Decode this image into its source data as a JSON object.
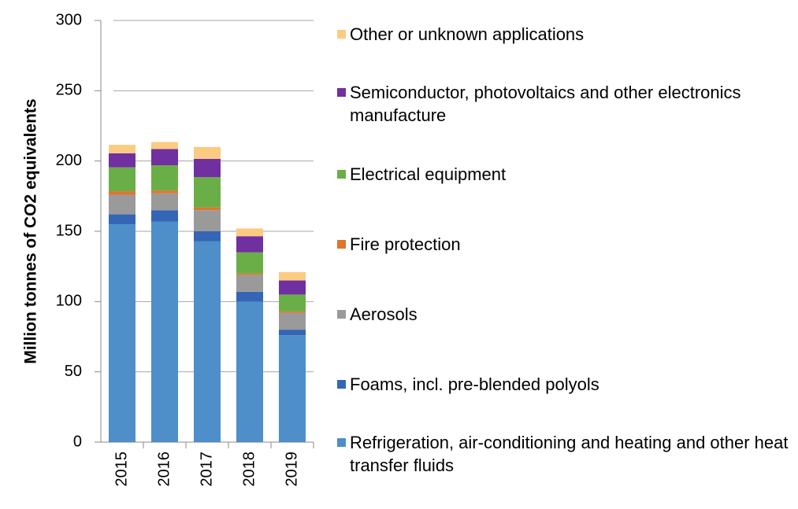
{
  "chart_data": {
    "type": "stacked_bar",
    "y_label": "Million tonnes of CO2 equivalents",
    "categories": [
      "2015",
      "2016",
      "2017",
      "2018",
      "2019"
    ],
    "series": [
      {
        "name": "Refrigeration, air-conditioning and heating and other heat transfer fluids",
        "color": "#4e8ec9",
        "values": [
          155,
          157,
          143,
          100,
          76
        ]
      },
      {
        "name": "Foams, incl. pre-blended polyols",
        "color": "#3466b5",
        "values": [
          7,
          8,
          7,
          7,
          4
        ]
      },
      {
        "name": "Aerosols",
        "color": "#9a9a9a",
        "values": [
          14,
          12,
          15,
          12,
          12
        ]
      },
      {
        "name": "Fire protection",
        "color": "#e0752c",
        "values": [
          2.5,
          2,
          2,
          1,
          1
        ]
      },
      {
        "name": "Electrical equipment",
        "color": "#6aae48",
        "values": [
          17,
          18,
          21.5,
          15,
          12
        ]
      },
      {
        "name": "Semiconductor, photovoltaics and other electronics manufacture",
        "color": "#7030a0",
        "values": [
          10,
          11.5,
          13,
          11.5,
          10
        ]
      },
      {
        "name": "Other or unknown applications",
        "color": "#fbcb82",
        "values": [
          6,
          5,
          8.5,
          5.5,
          6
        ]
      }
    ],
    "ylim": [
      0,
      300
    ],
    "yticks": [
      0,
      50,
      100,
      150,
      200,
      250,
      300
    ],
    "grid": true
  }
}
